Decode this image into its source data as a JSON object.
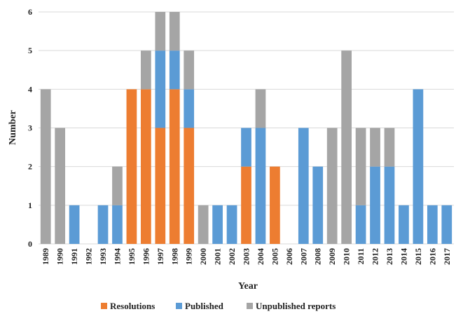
{
  "chart_data": {
    "type": "bar",
    "stacked": true,
    "xlabel": "Year",
    "ylabel": "Number",
    "ylim": [
      0,
      6
    ],
    "yticks": [
      0,
      1,
      2,
      3,
      4,
      5,
      6
    ],
    "grid": true,
    "legend_position": "bottom",
    "categories": [
      "1989",
      "1990",
      "1991",
      "1992",
      "1993",
      "1994",
      "1995",
      "1996",
      "1997",
      "1998",
      "1999",
      "2000",
      "2001",
      "2002",
      "2003",
      "2004",
      "2005",
      "2006",
      "2007",
      "2008",
      "2009",
      "2010",
      "2011",
      "2012",
      "2013",
      "2014",
      "2015",
      "2016",
      "2017"
    ],
    "series": [
      {
        "name": "Resolutions",
        "color": "#ed7d31",
        "values": [
          0,
          0,
          0,
          0,
          0,
          0,
          4,
          4,
          3,
          4,
          3,
          0,
          0,
          0,
          2,
          0,
          2,
          0,
          0,
          0,
          0,
          0,
          0,
          0,
          0,
          0,
          0,
          0,
          0
        ]
      },
      {
        "name": "Published",
        "color": "#5b9bd5",
        "values": [
          0,
          0,
          1,
          0,
          1,
          1,
          0,
          0,
          2,
          1,
          1,
          0,
          1,
          1,
          1,
          3,
          0,
          0,
          3,
          2,
          0,
          0,
          1,
          2,
          2,
          1,
          4,
          1,
          1
        ]
      },
      {
        "name": "Unpublished reports",
        "color": "#a5a5a5",
        "values": [
          4,
          3,
          0,
          0,
          0,
          1,
          0,
          1,
          1,
          1,
          1,
          1,
          0,
          0,
          0,
          1,
          0,
          0,
          0,
          0,
          3,
          5,
          2,
          1,
          1,
          0,
          0,
          0,
          0
        ]
      }
    ]
  }
}
